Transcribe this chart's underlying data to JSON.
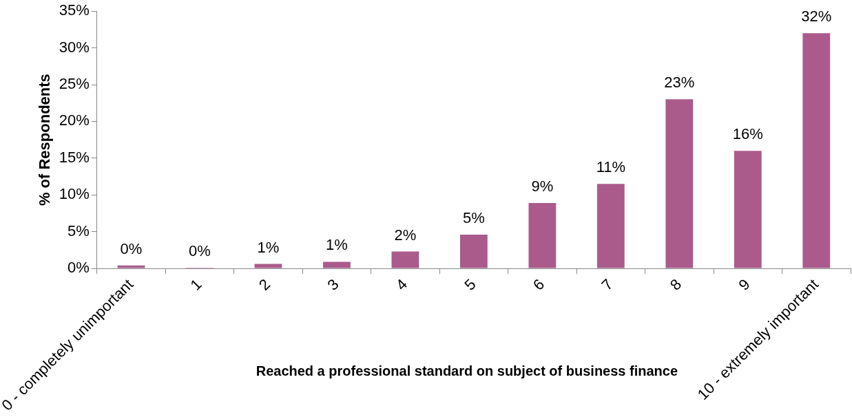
{
  "chart_data": {
    "type": "bar",
    "xlabel": "Reached a professional standard on subject of business finance",
    "ylabel": "% of Respondents",
    "categories": [
      "0 - completely unimportant",
      "1",
      "2",
      "3",
      "4",
      "5",
      "6",
      "7",
      "8",
      "9",
      "10 - extremely important"
    ],
    "values": [
      0.4,
      0.1,
      0.6,
      0.9,
      2.3,
      4.6,
      8.9,
      11.5,
      23,
      16,
      32
    ],
    "value_labels": [
      "0%",
      "0%",
      "1%",
      "1%",
      "2%",
      "5%",
      "9%",
      "11%",
      "23%",
      "16%",
      "32%"
    ],
    "color": "#aa5b8b",
    "ylim": [
      0,
      35
    ],
    "yticks": [
      {
        "value": 0,
        "label": "0%"
      },
      {
        "value": 5,
        "label": "5%"
      },
      {
        "value": 10,
        "label": "10%"
      },
      {
        "value": 15,
        "label": "15%"
      },
      {
        "value": 20,
        "label": "20%"
      },
      {
        "value": 25,
        "label": "25%"
      },
      {
        "value": 30,
        "label": "30%"
      },
      {
        "value": 35,
        "label": "35%"
      }
    ],
    "grid": false,
    "legend": false
  }
}
